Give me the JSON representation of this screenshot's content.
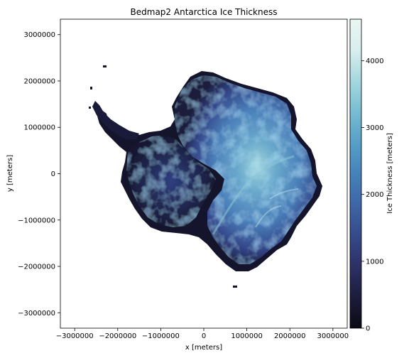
{
  "chart_data": {
    "type": "heatmap",
    "title": "Bedmap2 Antarctica Ice Thickness",
    "xlabel": "x [meters]",
    "ylabel": "y [meters]",
    "xlim": [
      -3333000,
      3333000
    ],
    "ylim": [
      -3333000,
      3333000
    ],
    "xticks": [
      -3000000,
      -2000000,
      -1000000,
      0,
      1000000,
      2000000,
      3000000
    ],
    "xtick_labels": [
      "−3000000",
      "−2000000",
      "−1000000",
      "0",
      "1000000",
      "2000000",
      "3000000"
    ],
    "yticks": [
      -3000000,
      -2000000,
      -1000000,
      0,
      1000000,
      2000000,
      3000000
    ],
    "ytick_labels": [
      "−3000000",
      "−2000000",
      "−1000000",
      "0",
      "1000000",
      "2000000",
      "3000000"
    ],
    "grid": false,
    "colorbar": {
      "label": "Ice Thickness [meters]",
      "range": [
        0,
        4620
      ],
      "ticks": [
        0,
        1000,
        2000,
        3000,
        4000
      ],
      "tick_labels": [
        "0",
        "1000",
        "2000",
        "3000",
        "4000"
      ],
      "colormap": [
        "#0b0a14",
        "#1c1c3b",
        "#2c3065",
        "#364a8b",
        "#3e66a6",
        "#4682ba",
        "#569fc7",
        "#78bdd2",
        "#a5d8de",
        "#d8eeee",
        "#e9f7f4"
      ]
    },
    "colors": {
      "no_data": "#ffffff"
    }
  }
}
